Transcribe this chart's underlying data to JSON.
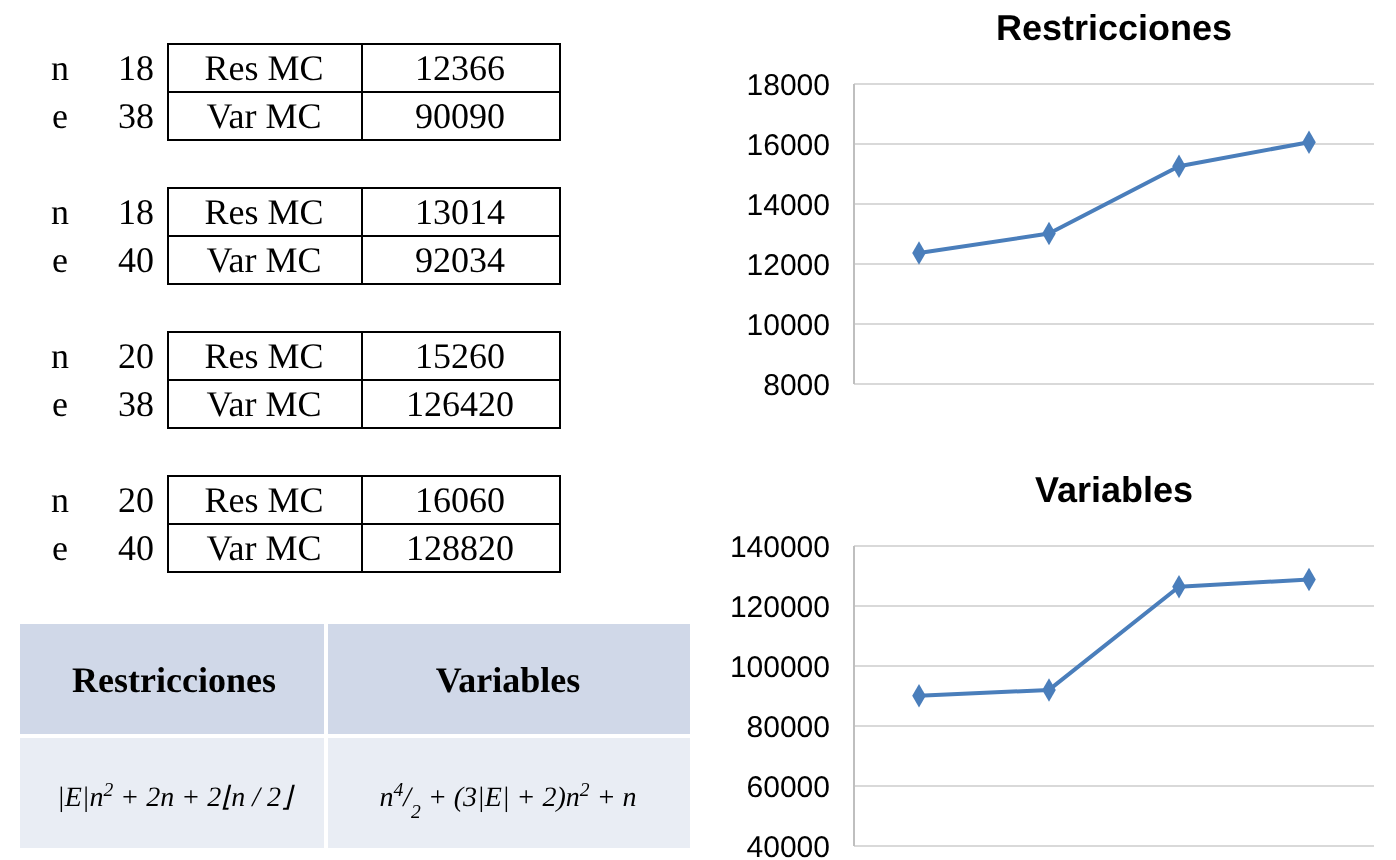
{
  "chart_data": [
    {
      "type": "other",
      "annotations": [
        "n",
        "18",
        "Res MC",
        "12366",
        "e",
        "38",
        "Var MC",
        "90090",
        "n",
        "18",
        "Res MC",
        "13014",
        "e",
        "40",
        "Var MC",
        "92034",
        "n",
        "20",
        "Res MC",
        "15260",
        "e",
        "38",
        "Var MC",
        "126420",
        "n",
        "20",
        "Res MC",
        "16060",
        "e",
        "40",
        "Var MC",
        "128820",
        "Restricciones",
        "Variables",
        "|E|n$^{2}$ + 2n + 2⌊n / 2⌋",
        "n$^{4}$/$_{2}$ + (3|E| + 2)n$^{2}$ + n"
      ]
    },
    {
      "type": "line",
      "title": "Restricciones",
      "categories": [
        null,
        null,
        null,
        null
      ],
      "series": [
        {
          "color": "#4a7ebb",
          "values": [
            12366,
            13014,
            15260,
            16060
          ]
        }
      ],
      "ylim": [
        8000,
        18000
      ],
      "yticks": [
        8000,
        10000,
        12000,
        14000,
        16000,
        18000
      ],
      "grid": "y",
      "marker": "diamond",
      "tick_labels": "y"
    },
    {
      "type": "line",
      "title": "Variables",
      "categories": [
        null,
        null,
        null,
        null
      ],
      "series": [
        {
          "color": "#4a7ebb",
          "values": [
            90090,
            92034,
            126420,
            128820
          ]
        }
      ],
      "ylim": [
        40000,
        140000
      ],
      "yticks": [
        40000,
        60000,
        80000,
        100000,
        120000,
        140000
      ],
      "grid": "y",
      "marker": "diamond",
      "tick_labels": "y"
    }
  ]
}
